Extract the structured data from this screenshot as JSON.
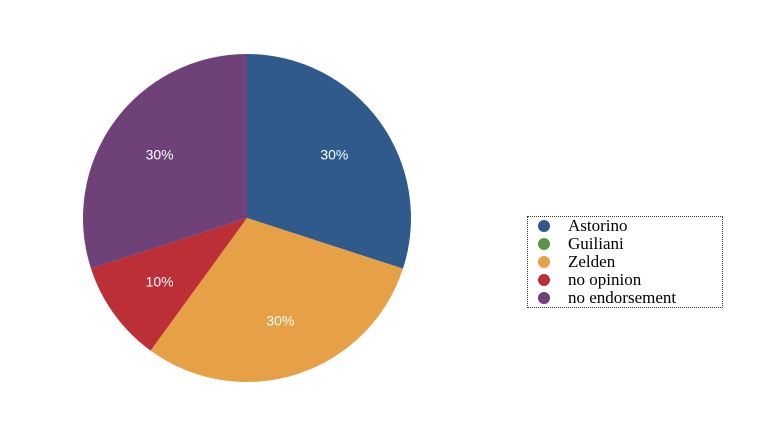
{
  "chart_data": {
    "type": "pie",
    "title": "",
    "categories": [
      "Astorino",
      "Guiliani",
      "Zelden",
      "no opinion",
      "no endorsement"
    ],
    "values": [
      30,
      0,
      30,
      10,
      30
    ],
    "value_labels": [
      "30%",
      "",
      "30%",
      "10%",
      "30%"
    ],
    "colors": [
      "#2f5a8b",
      "#5f9448",
      "#e6a046",
      "#bd2f37",
      "#6e4178"
    ],
    "start_angle_deg": 0,
    "direction": "clockwise",
    "legend_position": "right"
  }
}
